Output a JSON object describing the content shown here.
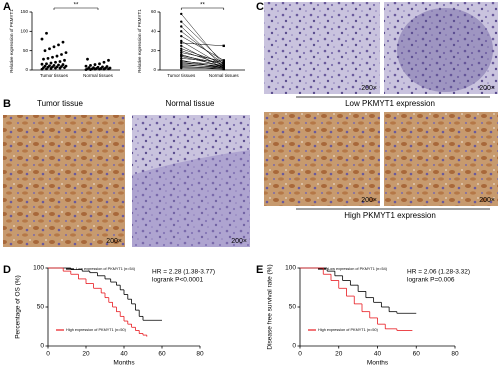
{
  "panel_labels": [
    "A",
    "B",
    "C",
    "D",
    "E"
  ],
  "panel_b": {
    "titles": [
      "Tumor tissue",
      "Normal tissue"
    ],
    "magnifications": [
      "200×",
      "200×"
    ]
  },
  "panel_c": {
    "groups": [
      {
        "caption": "Low PKMYT1 expression",
        "magnifications": [
          "200×",
          "200×"
        ]
      },
      {
        "caption": "High PKMYT1 expression",
        "magnifications": [
          "200×",
          "200×"
        ]
      }
    ]
  },
  "chart_data": [
    {
      "type": "strip",
      "ylabel": "Relative expression of PKMYT1",
      "categories": [
        "Tumor tissues",
        "Normal tissues"
      ],
      "values": [
        [
          2,
          3,
          4,
          5,
          5,
          6,
          6,
          7,
          8,
          8,
          9,
          10,
          10,
          11,
          12,
          13,
          14,
          15,
          16,
          18,
          20,
          22,
          25,
          28,
          30,
          33,
          36,
          40,
          45,
          50,
          55,
          60,
          65,
          72,
          80,
          95
        ],
        [
          1,
          1,
          2,
          2,
          2,
          3,
          3,
          3,
          4,
          4,
          5,
          5,
          6,
          6,
          7,
          8,
          9,
          10,
          12,
          14,
          16,
          20,
          25,
          28
        ]
      ],
      "ylim": [
        0,
        150
      ],
      "yticks": [
        0,
        50,
        100,
        150
      ],
      "annotation": "**",
      "color": "#000000"
    },
    {
      "type": "paired",
      "ylabel": "Relative expression of PKMYT1",
      "categories": [
        "Tumor tissues",
        "Normal tissues"
      ],
      "values": [
        [
          58,
          50,
          45,
          40,
          35,
          30,
          28,
          25,
          22,
          20,
          18,
          16,
          15,
          14,
          12,
          10,
          9,
          8,
          7,
          6,
          5,
          4,
          3,
          2
        ],
        [
          5,
          8,
          3,
          6,
          10,
          4,
          25,
          2,
          7,
          5,
          9,
          3,
          6,
          4,
          8,
          2,
          5,
          3,
          4,
          2,
          3,
          1,
          2,
          1
        ]
      ],
      "ylim": [
        0,
        60
      ],
      "yticks": [
        0,
        20,
        40,
        60
      ],
      "annotation": "**",
      "color": "#000000"
    },
    {
      "type": "km",
      "ylabel": "Percentage of OS (%)",
      "xlabel": "Months",
      "xlim": [
        0,
        80
      ],
      "xticks": [
        0,
        20,
        40,
        60,
        80
      ],
      "ylim": [
        0,
        100
      ],
      "yticks": [
        0,
        50,
        100
      ],
      "annotations": [
        "HR = 2.28 (1.38-3.77)",
        "logrank P<0.0001"
      ],
      "series": [
        {
          "name": "Low expression of PKMYT1 (n=54)",
          "color": "#000000",
          "x": [
            0,
            12,
            18,
            22,
            26,
            30,
            33,
            36,
            38,
            40,
            42,
            44,
            46,
            48,
            50,
            60
          ],
          "values": [
            100,
            98,
            96,
            94,
            90,
            86,
            82,
            78,
            72,
            66,
            60,
            54,
            46,
            38,
            33,
            33
          ]
        },
        {
          "name": "High expression of PKMYT1 (n=50)",
          "color": "#e8191f",
          "x": [
            0,
            8,
            12,
            16,
            20,
            24,
            28,
            30,
            32,
            34,
            36,
            38,
            40,
            42,
            44,
            46,
            48,
            50,
            52
          ],
          "values": [
            100,
            96,
            92,
            86,
            80,
            74,
            68,
            62,
            56,
            50,
            44,
            38,
            32,
            28,
            24,
            20,
            16,
            14,
            12
          ]
        }
      ]
    },
    {
      "type": "km",
      "ylabel": "Disease free survival rate (%)",
      "xlabel": "Months",
      "xlim": [
        0,
        80
      ],
      "xticks": [
        0,
        20,
        40,
        60,
        80
      ],
      "ylim": [
        0,
        100
      ],
      "yticks": [
        0,
        50,
        100
      ],
      "annotations": [
        "HR = 2.06 (1.28-3.32)",
        "logrank P=0.006"
      ],
      "series": [
        {
          "name": "Low expression of PKMYT1 (n=54)",
          "color": "#000000",
          "x": [
            0,
            14,
            18,
            22,
            26,
            30,
            34,
            38,
            42,
            46,
            50,
            60
          ],
          "values": [
            100,
            96,
            90,
            84,
            78,
            70,
            62,
            56,
            50,
            44,
            42,
            42
          ]
        },
        {
          "name": "High expression of PKMYT1 (n=50)",
          "color": "#e8191f",
          "x": [
            0,
            12,
            16,
            20,
            24,
            28,
            32,
            36,
            40,
            44,
            50,
            58
          ],
          "values": [
            100,
            92,
            84,
            74,
            64,
            54,
            44,
            36,
            28,
            22,
            20,
            20
          ]
        }
      ]
    }
  ]
}
